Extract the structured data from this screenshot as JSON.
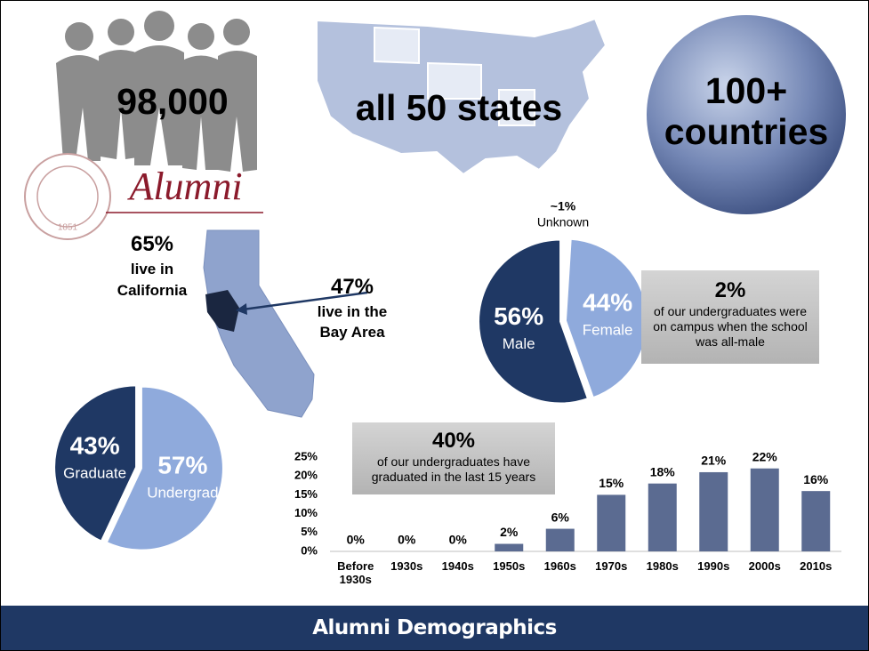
{
  "stats": {
    "alumni_count": "98,000",
    "logo_word": "Alumni",
    "logo_year": "1851",
    "states": "all 50 states",
    "countries": "100+ countries"
  },
  "california": {
    "state_pct": "65%",
    "state_text": "live in California",
    "bay_pct": "47%",
    "bay_text": "live in the Bay Area"
  },
  "gender_note": {
    "head": "2%",
    "text": "of our undergraduates were on campus when the school was all-male"
  },
  "decade_note": {
    "head": "40%",
    "text": "of our undergraduates have graduated in the last 15 years"
  },
  "chart_data": [
    {
      "type": "pie",
      "categories": [
        "Unknown",
        "Female",
        "Male"
      ],
      "values": [
        1,
        44,
        56
      ],
      "value_labels": [
        "~1%",
        "44%",
        "56%"
      ],
      "colors": [
        "#ffffff",
        "#8faadc",
        "#1f3864"
      ]
    },
    {
      "type": "pie",
      "categories": [
        "Undergrad",
        "Graduate"
      ],
      "values": [
        57,
        43
      ],
      "value_labels": [
        "57%",
        "43%"
      ],
      "colors": [
        "#8faadc",
        "#1f3864"
      ]
    },
    {
      "type": "bar",
      "categories": [
        "Before 1930s",
        "1930s",
        "1940s",
        "1950s",
        "1960s",
        "1970s",
        "1980s",
        "1990s",
        "2000s",
        "2010s"
      ],
      "values": [
        0,
        0,
        0,
        2,
        6,
        15,
        18,
        21,
        22,
        16
      ],
      "value_labels": [
        "0%",
        "0%",
        "0%",
        "2%",
        "6%",
        "15%",
        "18%",
        "21%",
        "22%",
        "16%"
      ],
      "color": "#5b6b91",
      "ylim": [
        0,
        25
      ],
      "yticks": [
        {
          "value": 0,
          "label": "0%"
        },
        {
          "value": 5,
          "label": "5%"
        },
        {
          "value": 10,
          "label": "10%"
        },
        {
          "value": 15,
          "label": "15%"
        },
        {
          "value": 20,
          "label": "20%"
        },
        {
          "value": 25,
          "label": "25%"
        }
      ],
      "grid": false
    }
  ],
  "footer": "Alumni Demographics"
}
